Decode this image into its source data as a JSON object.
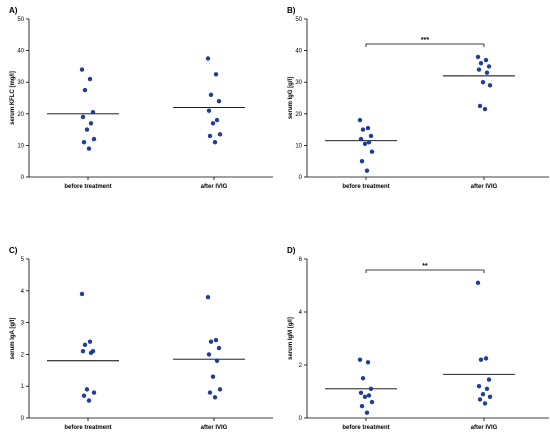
{
  "chart_data": [
    {
      "panel": "A)",
      "type": "scatter",
      "ylabel": "serum KFLC [mg/l]",
      "ylim": [
        0,
        50
      ],
      "yticks": [
        0,
        10,
        20,
        30,
        40,
        50
      ],
      "categories": [
        "before treatment",
        "after IVIG"
      ],
      "points": [
        [
          34,
          31,
          27.5,
          20.5,
          19,
          17,
          15,
          12,
          11,
          9
        ],
        [
          37.5,
          32.5,
          26,
          24,
          21,
          18,
          17,
          13.5,
          13,
          11
        ]
      ],
      "means": [
        20,
        22
      ],
      "significance": null
    },
    {
      "panel": "B)",
      "type": "scatter",
      "ylabel": "serum IgG [g/l]",
      "ylim": [
        0,
        50
      ],
      "yticks": [
        0,
        10,
        20,
        30,
        40,
        50
      ],
      "categories": [
        "before treatment",
        "after IVIG"
      ],
      "points": [
        [
          18,
          15.5,
          15,
          13,
          12,
          11,
          10.5,
          8,
          5,
          2
        ],
        [
          38,
          37,
          36,
          35,
          34,
          33,
          30,
          29,
          22.5,
          21.5
        ]
      ],
      "means": [
        11.5,
        32
      ],
      "significance": "***"
    },
    {
      "panel": "C)",
      "type": "scatter",
      "ylabel": "serum IgA [g/l]",
      "ylim": [
        0,
        5
      ],
      "yticks": [
        0,
        1,
        2,
        3,
        4,
        5
      ],
      "categories": [
        "before treatment",
        "after IVIG"
      ],
      "points": [
        [
          3.9,
          2.4,
          2.3,
          2.1,
          2.1,
          2.05,
          0.9,
          0.8,
          0.7,
          0.55
        ],
        [
          3.8,
          2.45,
          2.4,
          2.2,
          2.0,
          1.8,
          1.3,
          0.9,
          0.8,
          0.65
        ]
      ],
      "means": [
        1.8,
        1.85
      ],
      "significance": null
    },
    {
      "panel": "D)",
      "type": "scatter",
      "ylabel": "serum IgM [g/l]",
      "ylim": [
        0,
        6
      ],
      "yticks": [
        0,
        2,
        4,
        6
      ],
      "categories": [
        "before treatment",
        "after IVIG"
      ],
      "points": [
        [
          2.2,
          2.1,
          1.5,
          1.1,
          0.95,
          0.85,
          0.8,
          0.6,
          0.45,
          0.2
        ],
        [
          5.1,
          2.25,
          2.2,
          1.45,
          1.2,
          1.1,
          0.9,
          0.8,
          0.7,
          0.55
        ]
      ],
      "means": [
        1.1,
        1.65
      ],
      "significance": "**"
    }
  ]
}
